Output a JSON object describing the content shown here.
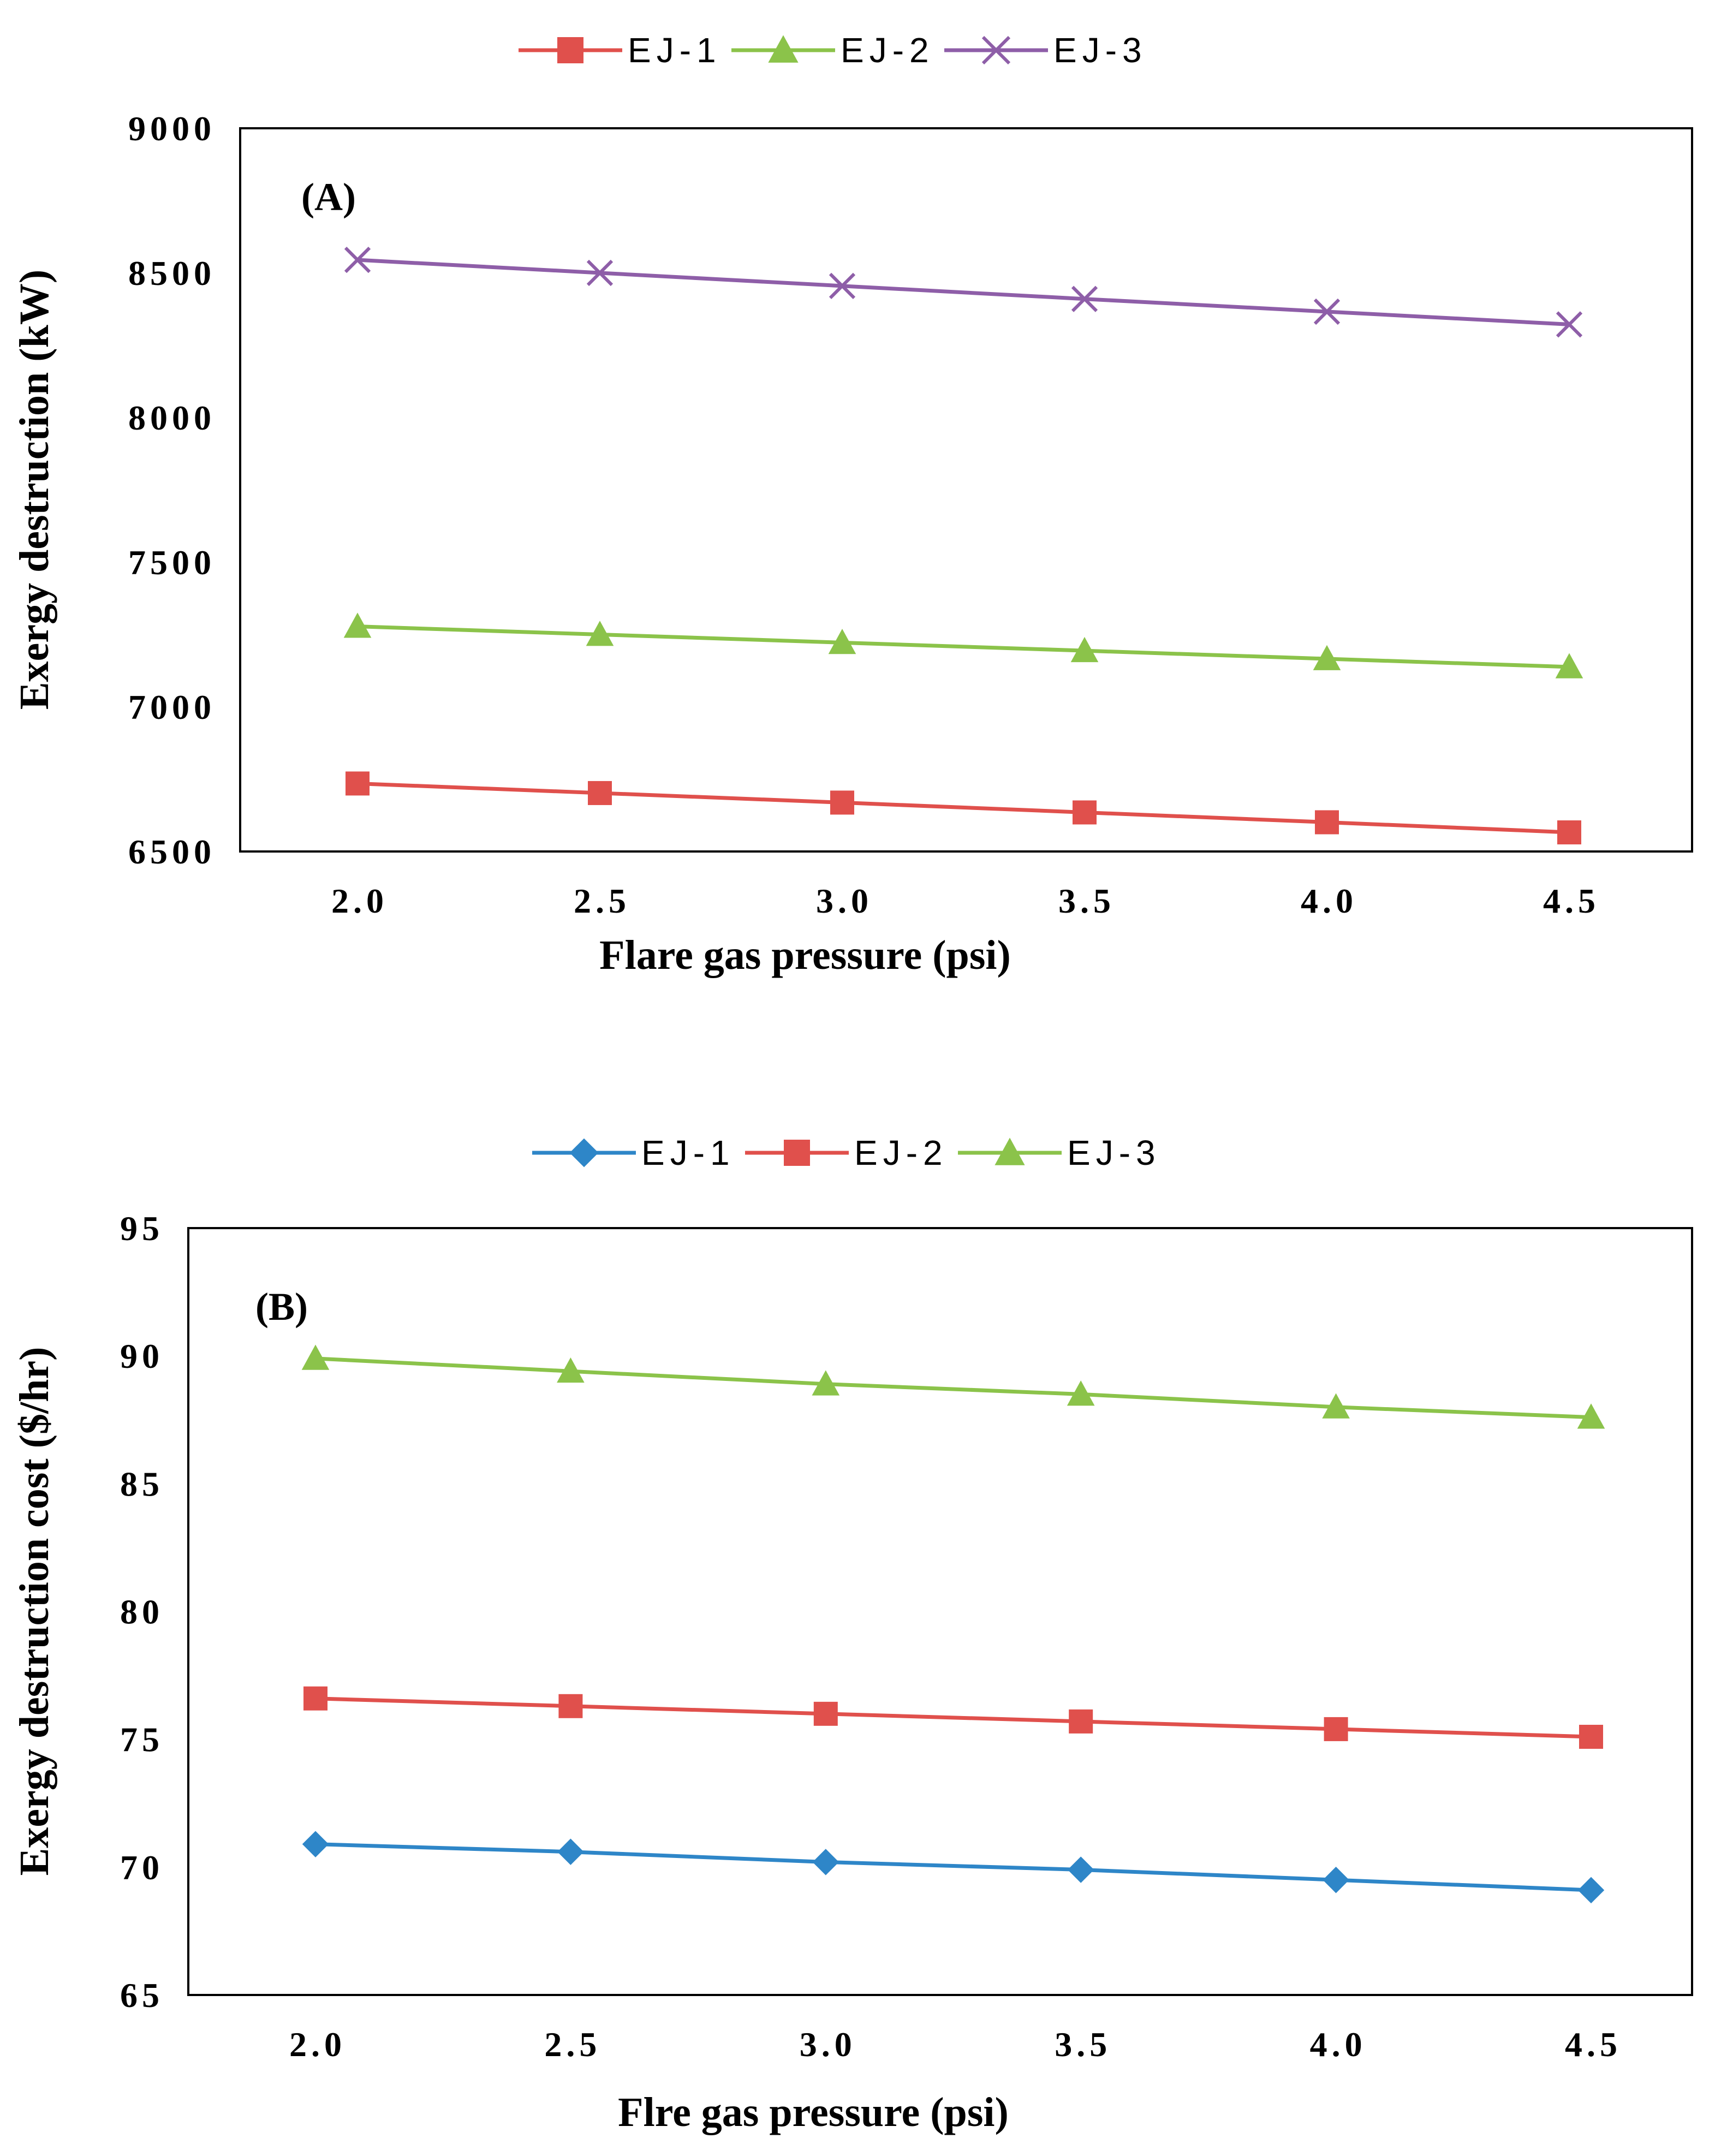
{
  "chart_data": [
    {
      "type": "line",
      "panel_label": "(A)",
      "xlabel": "Flare gas pressure (psi)",
      "ylabel": "Exergy destruction (kW)",
      "x": [
        2.0,
        2.5,
        3.0,
        3.5,
        4.0,
        4.5
      ],
      "x_tick_labels": [
        "2.0",
        "2.5",
        "3.0",
        "3.5",
        "4.0",
        "4.5"
      ],
      "ylim": [
        6500,
        9000
      ],
      "y_ticks": [
        6500,
        7000,
        7500,
        8000,
        8500,
        9000
      ],
      "y_tick_labels": [
        "6500",
        "7000",
        "7500",
        "8000",
        "8500",
        "9000"
      ],
      "legend_position": "top-center",
      "grid": false,
      "series": [
        {
          "name": "EJ-1",
          "color": "#e0504c",
          "marker": "square",
          "values": [
            6735,
            6702,
            6669,
            6635,
            6601,
            6566
          ]
        },
        {
          "name": "EJ-2",
          "color": "#8bc34a",
          "marker": "triangle",
          "values": [
            7278,
            7250,
            7222,
            7194,
            7166,
            7138
          ]
        },
        {
          "name": "EJ-3",
          "color": "#8e5ea8",
          "marker": "x",
          "values": [
            8545,
            8500,
            8455,
            8410,
            8366,
            8322
          ]
        }
      ]
    },
    {
      "type": "line",
      "panel_label": "(B)",
      "xlabel": "Flre gas pressure (psi)",
      "ylabel": "Exergy destruction cost ($/hr)",
      "x": [
        2.0,
        2.5,
        3.0,
        3.5,
        4.0,
        4.5
      ],
      "x_tick_labels": [
        "2.0",
        "2.5",
        "3.0",
        "3.5",
        "4.0",
        "4.5"
      ],
      "ylim": [
        65,
        95
      ],
      "y_ticks": [
        65,
        70,
        75,
        80,
        85,
        90,
        95
      ],
      "y_tick_labels": [
        "65",
        "70",
        "75",
        "80",
        "85",
        "90",
        "95"
      ],
      "legend_position": "top-center",
      "grid": false,
      "series": [
        {
          "name": "EJ-1",
          "color": "#2e86c8",
          "marker": "diamond",
          "values": [
            70.9,
            70.6,
            70.2,
            69.9,
            69.5,
            69.1
          ]
        },
        {
          "name": "EJ-2",
          "color": "#e0504c",
          "marker": "square",
          "values": [
            76.6,
            76.3,
            76.0,
            75.7,
            75.4,
            75.1
          ]
        },
        {
          "name": "EJ-3",
          "color": "#8bc34a",
          "marker": "triangle",
          "values": [
            89.9,
            89.4,
            88.9,
            88.5,
            88.0,
            87.6
          ]
        }
      ]
    }
  ]
}
